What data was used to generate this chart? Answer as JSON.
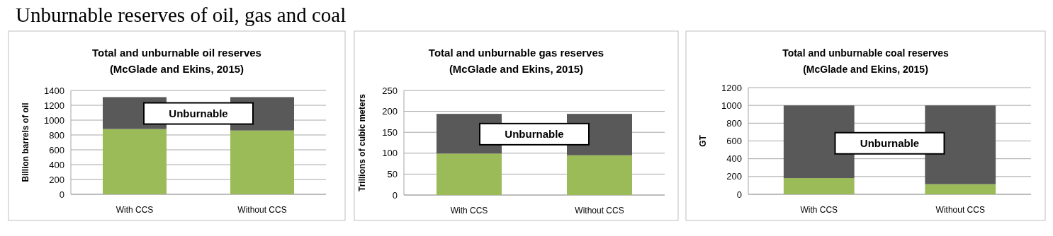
{
  "chart_data": [
    {
      "type": "other",
      "title": "Unburnable reserves of oil, gas and coal"
    },
    {
      "type": "bar",
      "title": "Total and unburnable oil reserves",
      "subtitle": "(McGlade and Ekins, 2015)",
      "ylabel": "Billion barrels of oil",
      "categories": [
        "With CCS",
        "Without CCS"
      ],
      "stacked": true,
      "grid": "y",
      "ylim": [
        0,
        1400
      ],
      "yticks": [
        0,
        200,
        400,
        600,
        800,
        1000,
        1200,
        1400
      ],
      "series": [
        {
          "color": "#9bbb59",
          "values": [
            880,
            860
          ]
        },
        {
          "color": "#595959",
          "values": [
            430,
            450
          ]
        }
      ],
      "annotations": [
        "Unburnable"
      ]
    },
    {
      "type": "bar",
      "title": "Total and unburnable gas reserves",
      "subtitle": "(McGlade and Ekins, 2015)",
      "ylabel": "Trillions of cubic meters",
      "categories": [
        "With CCS",
        "Without CCS"
      ],
      "stacked": true,
      "grid": "y",
      "ylim": [
        0,
        250
      ],
      "yticks": [
        0,
        50,
        100,
        150,
        200,
        250
      ],
      "series": [
        {
          "color": "#9bbb59",
          "values": [
            99,
            95
          ]
        },
        {
          "color": "#595959",
          "values": [
            95,
            99
          ]
        }
      ],
      "annotations": [
        "Unburnable"
      ]
    },
    {
      "type": "bar",
      "title": "Total and unburnable coal reserves",
      "subtitle": "(McGlade and Ekins, 2015)",
      "ylabel": "GT",
      "categories": [
        "With CCS",
        "Without CCS"
      ],
      "stacked": true,
      "grid": "y",
      "ylim": [
        0,
        1200
      ],
      "yticks": [
        0,
        200,
        400,
        600,
        800,
        1000,
        1200
      ],
      "series": [
        {
          "color": "#9bbb59",
          "values": [
            182,
            114
          ]
        },
        {
          "color": "#595959",
          "values": [
            818,
            886
          ]
        }
      ],
      "annotations": [
        "Unburnable"
      ]
    }
  ]
}
